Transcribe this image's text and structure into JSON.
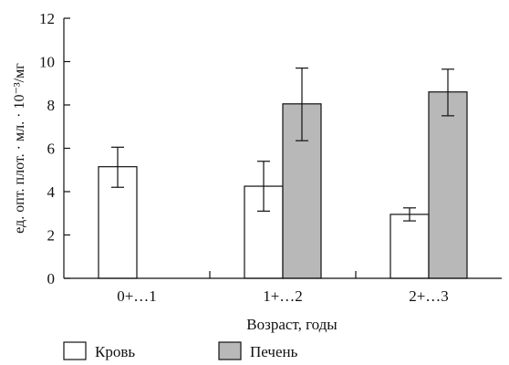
{
  "chart_data": {
    "type": "bar",
    "categories": [
      "0+…1",
      "1+…2",
      "2+…3"
    ],
    "series": [
      {
        "name": "Кровь",
        "color": "#ffffff",
        "values": [
          5.15,
          4.25,
          2.95
        ],
        "error_low": [
          4.2,
          3.1,
          2.65
        ],
        "error_high": [
          6.05,
          5.4,
          3.25
        ]
      },
      {
        "name": "Печень",
        "color": "#b8b8b8",
        "values": [
          null,
          8.05,
          8.6
        ],
        "error_low": [
          null,
          6.35,
          7.5
        ],
        "error_high": [
          null,
          9.7,
          9.65
        ]
      }
    ],
    "xlabel": "Возраст, годы",
    "ylabel": "ед. опт. плот. · мл. · 10⁻³/мг",
    "ylim": [
      0,
      12
    ],
    "yticks": [
      0,
      2,
      4,
      6,
      8,
      10,
      12
    ],
    "grid": false,
    "legend_position": "bottom-left"
  }
}
